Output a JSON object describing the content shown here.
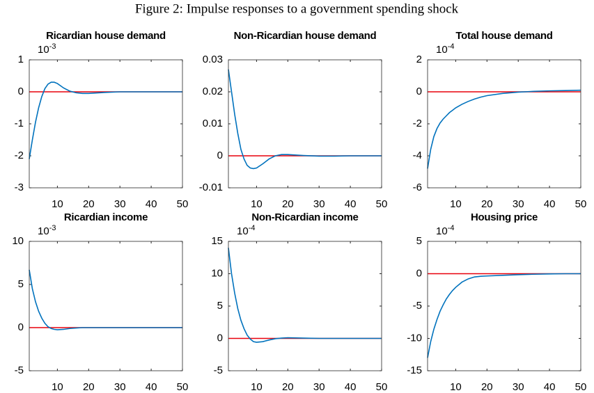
{
  "title": "Figure 2: Impulse responses to a government spending shock",
  "chart_data": [
    {
      "type": "line",
      "title": "Ricardian house demand",
      "scale_base": "10",
      "scale_exponent": "-3",
      "x": [
        1,
        2,
        3,
        4,
        5,
        6,
        7,
        8,
        9,
        10,
        12,
        14,
        16,
        18,
        20,
        25,
        30,
        35,
        40,
        45,
        50
      ],
      "series": [
        {
          "color": "#0072bd",
          "values": [
            -2.1,
            -1.5,
            -0.95,
            -0.5,
            -0.15,
            0.1,
            0.24,
            0.3,
            0.3,
            0.26,
            0.12,
            0.02,
            -0.03,
            -0.05,
            -0.05,
            -0.02,
            0,
            0,
            0,
            0,
            0
          ]
        }
      ],
      "hline": {
        "value": 0,
        "color": "#e8000b"
      },
      "xlim": [
        1,
        50
      ],
      "xticks": [
        10,
        20,
        30,
        40,
        50
      ],
      "ylim": [
        -3,
        1
      ],
      "yticks": [
        -3,
        -2,
        -1,
        0,
        1
      ]
    },
    {
      "type": "line",
      "title": "Non-Ricardian house demand",
      "x": [
        1,
        2,
        3,
        4,
        5,
        6,
        7,
        8,
        9,
        10,
        12,
        14,
        16,
        18,
        20,
        25,
        30,
        35,
        40,
        45,
        50
      ],
      "series": [
        {
          "color": "#0072bd",
          "values": [
            0.027,
            0.02,
            0.013,
            0.007,
            0.002,
            -0.001,
            -0.003,
            -0.0038,
            -0.004,
            -0.0038,
            -0.0025,
            -0.001,
            0,
            0.0004,
            0.0004,
            0.0001,
            -0.0001,
            -0.0001,
            0,
            0,
            0
          ]
        }
      ],
      "hline": {
        "value": 0,
        "color": "#e8000b"
      },
      "xlim": [
        1,
        50
      ],
      "xticks": [
        10,
        20,
        30,
        40,
        50
      ],
      "ylim": [
        -0.01,
        0.03
      ],
      "yticks": [
        -0.01,
        0,
        0.01,
        0.02,
        0.03
      ]
    },
    {
      "type": "line",
      "title": "Total house demand",
      "scale_base": "10",
      "scale_exponent": "-4",
      "x": [
        1,
        2,
        3,
        4,
        5,
        6,
        7,
        8,
        9,
        10,
        12,
        14,
        16,
        18,
        20,
        25,
        30,
        35,
        40,
        45,
        50
      ],
      "series": [
        {
          "color": "#0072bd",
          "values": [
            -4.8,
            -3.6,
            -2.8,
            -2.3,
            -1.95,
            -1.7,
            -1.5,
            -1.3,
            -1.15,
            -1.0,
            -0.78,
            -0.6,
            -0.45,
            -0.33,
            -0.24,
            -0.1,
            -0.02,
            0.03,
            0.06,
            0.08,
            0.1
          ]
        }
      ],
      "hline": {
        "value": 0,
        "color": "#e8000b"
      },
      "xlim": [
        1,
        50
      ],
      "xticks": [
        10,
        20,
        30,
        40,
        50
      ],
      "ylim": [
        -6,
        2
      ],
      "yticks": [
        -6,
        -4,
        -2,
        0,
        2
      ]
    },
    {
      "type": "line",
      "title": "Ricardian income",
      "scale_base": "10",
      "scale_exponent": "-3",
      "x": [
        1,
        2,
        3,
        4,
        5,
        6,
        7,
        8,
        9,
        10,
        12,
        14,
        16,
        18,
        20,
        25,
        30,
        35,
        40,
        45,
        50
      ],
      "series": [
        {
          "color": "#0072bd",
          "values": [
            6.7,
            4.5,
            3.0,
            1.9,
            1.1,
            0.5,
            0.1,
            -0.1,
            -0.2,
            -0.25,
            -0.2,
            -0.1,
            -0.05,
            0,
            0,
            0,
            0,
            0,
            0,
            0,
            0
          ]
        }
      ],
      "hline": {
        "value": 0,
        "color": "#e8000b"
      },
      "xlim": [
        1,
        50
      ],
      "xticks": [
        10,
        20,
        30,
        40,
        50
      ],
      "ylim": [
        -5,
        10
      ],
      "yticks": [
        -5,
        0,
        5,
        10
      ]
    },
    {
      "type": "line",
      "title": "Non-Ricardian income",
      "scale_base": "10",
      "scale_exponent": "-4",
      "x": [
        1,
        2,
        3,
        4,
        5,
        6,
        7,
        8,
        9,
        10,
        12,
        14,
        16,
        18,
        20,
        25,
        30,
        35,
        40,
        45,
        50
      ],
      "series": [
        {
          "color": "#0072bd",
          "values": [
            14,
            10,
            7,
            4.6,
            2.8,
            1.5,
            0.5,
            -0.1,
            -0.5,
            -0.6,
            -0.5,
            -0.25,
            -0.05,
            0.05,
            0.1,
            0.05,
            0,
            0,
            0,
            0,
            0
          ]
        }
      ],
      "hline": {
        "value": 0,
        "color": "#e8000b"
      },
      "xlim": [
        1,
        50
      ],
      "xticks": [
        10,
        20,
        30,
        40,
        50
      ],
      "ylim": [
        -5,
        15
      ],
      "yticks": [
        -5,
        0,
        5,
        10,
        15
      ]
    },
    {
      "type": "line",
      "title": "Housing price",
      "scale_base": "10",
      "scale_exponent": "-4",
      "x": [
        1,
        2,
        3,
        4,
        5,
        6,
        7,
        8,
        9,
        10,
        12,
        14,
        16,
        18,
        20,
        25,
        30,
        35,
        40,
        45,
        50
      ],
      "series": [
        {
          "color": "#0072bd",
          "values": [
            -13,
            -10.5,
            -8.6,
            -7.1,
            -5.8,
            -4.8,
            -3.9,
            -3.2,
            -2.6,
            -2.1,
            -1.3,
            -0.8,
            -0.5,
            -0.4,
            -0.35,
            -0.25,
            -0.15,
            -0.08,
            -0.03,
            0,
            0
          ]
        }
      ],
      "hline": {
        "value": 0,
        "color": "#e8000b"
      },
      "xlim": [
        1,
        50
      ],
      "xticks": [
        10,
        20,
        30,
        40,
        50
      ],
      "ylim": [
        -15,
        5
      ],
      "yticks": [
        -15,
        -10,
        -5,
        0,
        5
      ]
    }
  ]
}
